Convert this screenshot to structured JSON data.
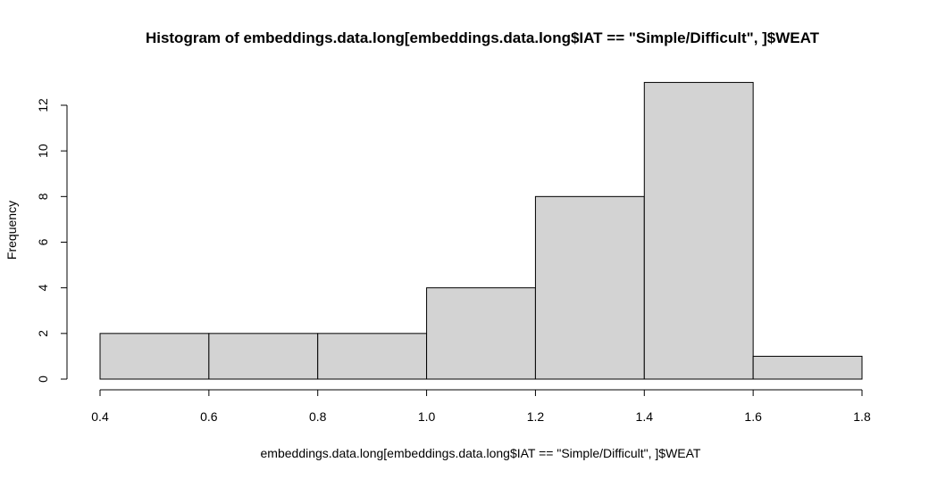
{
  "chart_data": {
    "type": "bar",
    "title": "Histogram of embeddings.data.long[embeddings.data.long$IAT == \"Simple/Difficult\", ]$WEAT",
    "xlabel": "embeddings.data.long[embeddings.data.long$IAT == \"Simple/Difficult\", ]$WEAT",
    "ylabel": "Frequency",
    "bins": [
      {
        "from": 0.4,
        "to": 0.6,
        "count": 2
      },
      {
        "from": 0.6,
        "to": 0.8,
        "count": 2
      },
      {
        "from": 0.8,
        "to": 1.0,
        "count": 2
      },
      {
        "from": 1.0,
        "to": 1.2,
        "count": 4
      },
      {
        "from": 1.2,
        "to": 1.4,
        "count": 8
      },
      {
        "from": 1.4,
        "to": 1.6,
        "count": 13
      },
      {
        "from": 1.6,
        "to": 1.8,
        "count": 1
      }
    ],
    "xlim": [
      0.4,
      1.8
    ],
    "ylim": [
      0,
      13
    ],
    "x_ticks": [
      "0.4",
      "0.6",
      "0.8",
      "1.0",
      "1.2",
      "1.4",
      "1.6",
      "1.8"
    ],
    "y_ticks": [
      "0",
      "2",
      "4",
      "6",
      "8",
      "10",
      "12"
    ],
    "bar_color": "#d3d3d3",
    "edge_color": "#000000",
    "grid": false
  }
}
